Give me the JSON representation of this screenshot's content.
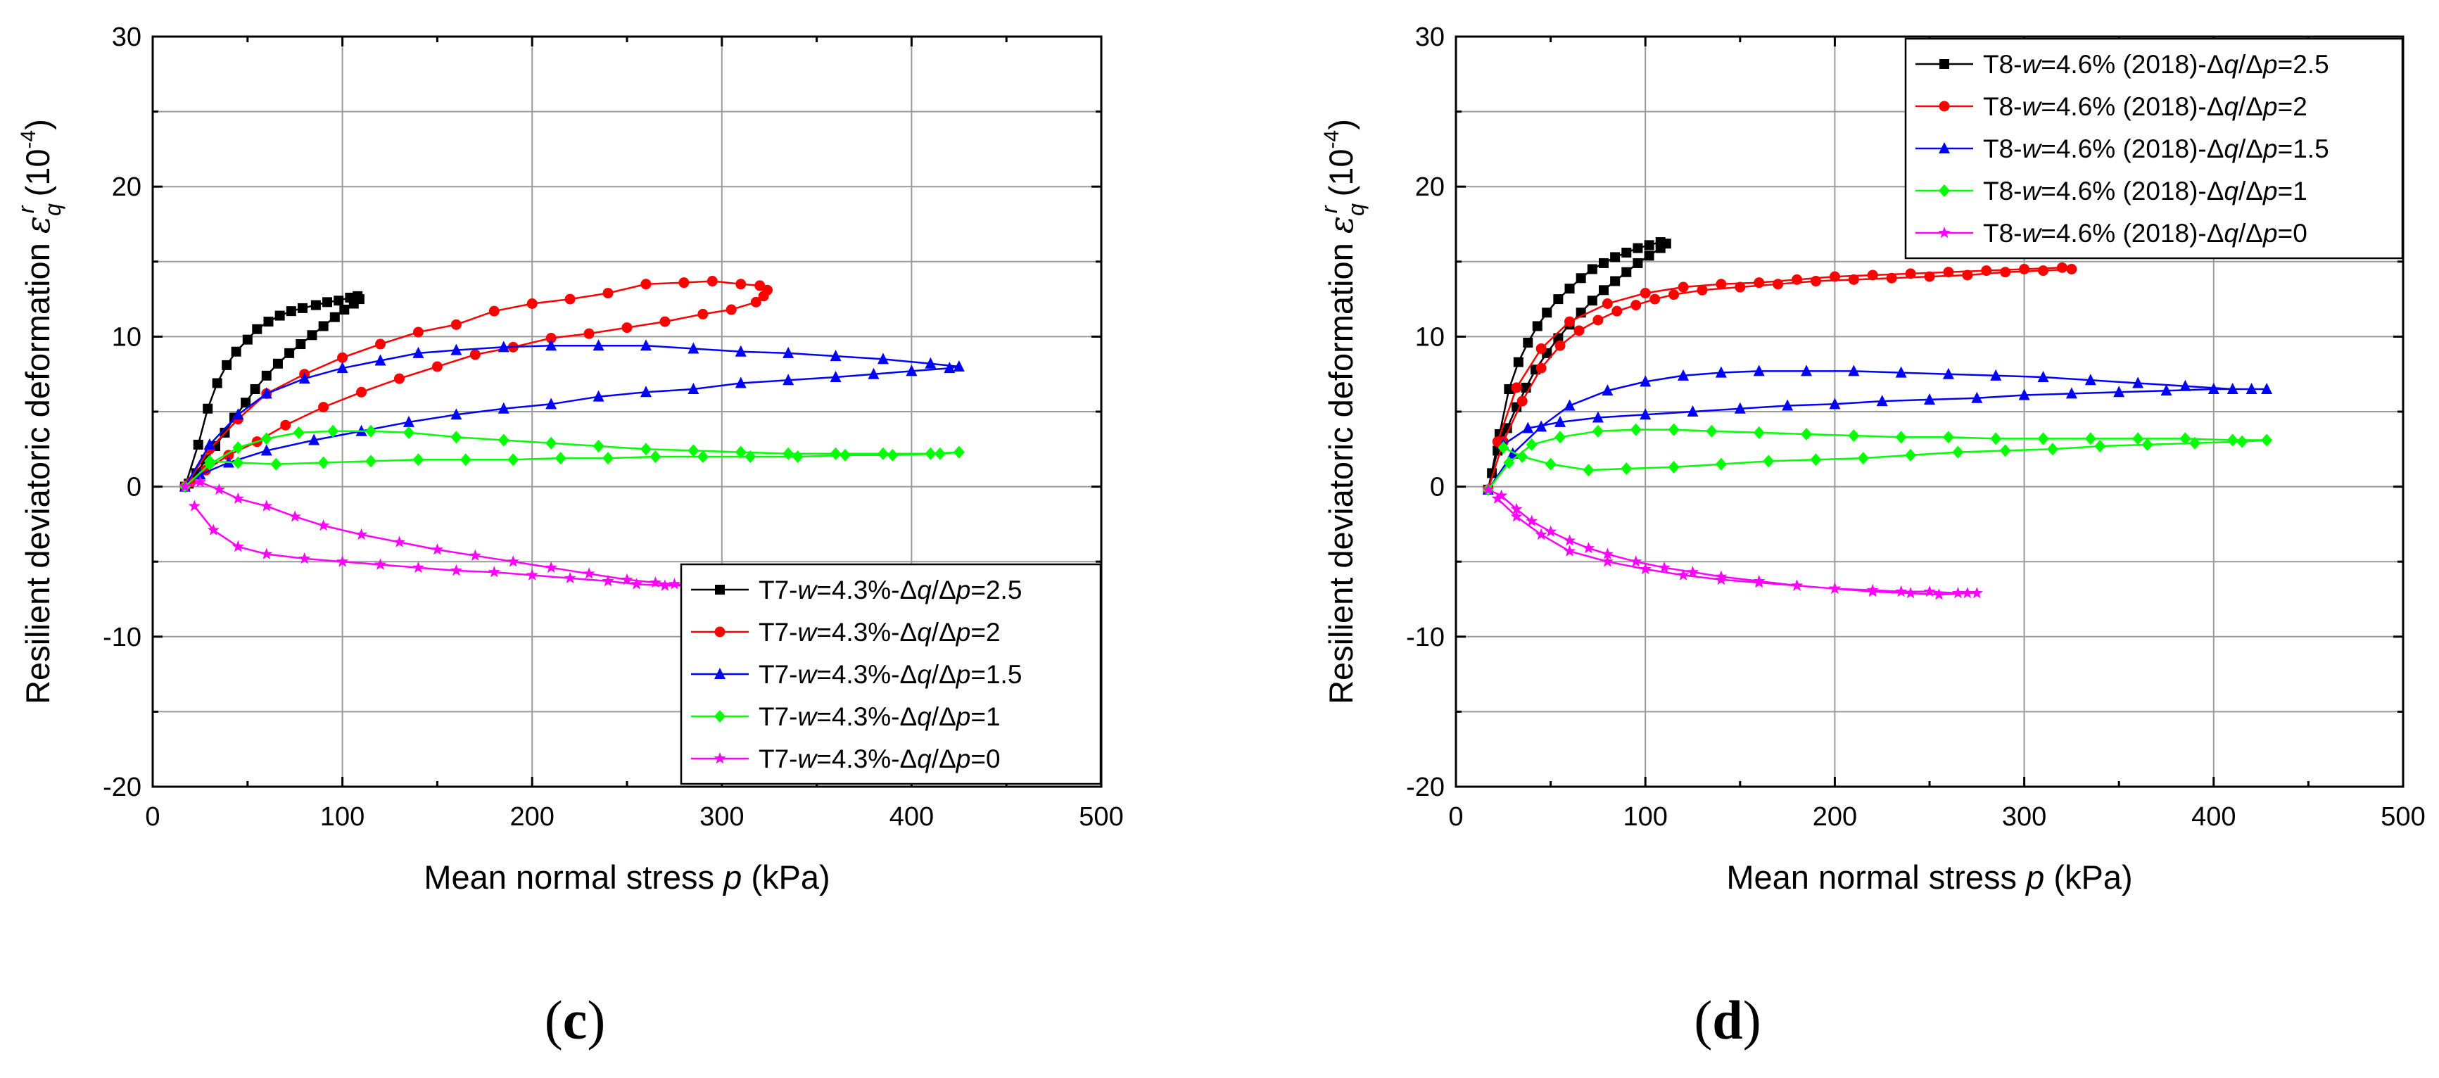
{
  "chart_data": [
    {
      "type": "line",
      "panel_label": "c",
      "xlabel": "Mean normal stress p (kPa)",
      "ylabel": "Resilient deviatoric deformation εqr (10-4)",
      "xlim": [
        0,
        500
      ],
      "ylim": [
        -20,
        30
      ],
      "xticks": [
        0,
        100,
        200,
        300,
        400,
        500
      ],
      "yticks": [
        -20,
        -10,
        0,
        10,
        20,
        30
      ],
      "grid": true,
      "legend_position": "bottom-right",
      "series": [
        {
          "name": "T7-w=4.3%-Δq/Δp=2.5",
          "legend": {
            "pre": "T7-",
            "w": "w",
            "mid": "=4.3%-Δ",
            "q": "q",
            "slash": "/Δ",
            "p": "p",
            "post": "=2.5"
          },
          "color": "#000000",
          "marker": "square",
          "x": [
            17,
            24,
            29,
            34,
            39,
            44,
            50,
            55,
            61,
            67,
            73,
            79,
            86,
            92,
            98,
            104,
            108,
            109,
            106,
            101,
            96,
            90,
            84,
            78,
            72,
            66,
            60,
            54,
            49,
            43,
            38,
            33,
            28,
            23,
            19
          ],
          "y": [
            0,
            2.8,
            5.2,
            6.9,
            8.1,
            9.0,
            9.8,
            10.5,
            11.0,
            11.4,
            11.7,
            11.9,
            12.1,
            12.3,
            12.4,
            12.6,
            12.7,
            12.5,
            12.2,
            11.8,
            11.3,
            10.7,
            10.1,
            9.5,
            8.9,
            8.2,
            7.4,
            6.5,
            5.6,
            4.6,
            3.6,
            2.7,
            1.8,
            0.9,
            0.2
          ]
        },
        {
          "name": "T7-w=4.3%-Δq/Δp=2",
          "legend": {
            "pre": "T7-",
            "w": "w",
            "mid": "=4.3%-Δ",
            "q": "q",
            "slash": "/Δ",
            "p": "p",
            "post": "=2"
          },
          "color": "#ff0000",
          "marker": "circle",
          "x": [
            17,
            30,
            45,
            60,
            80,
            100,
            120,
            140,
            160,
            180,
            200,
            220,
            240,
            260,
            280,
            295,
            310,
            320,
            324,
            322,
            318,
            305,
            290,
            270,
            250,
            230,
            210,
            190,
            170,
            150,
            130,
            110,
            90,
            70,
            55,
            40,
            28,
            20
          ],
          "y": [
            0,
            2.5,
            4.5,
            6.2,
            7.5,
            8.6,
            9.5,
            10.3,
            10.8,
            11.7,
            12.2,
            12.5,
            12.9,
            13.5,
            13.6,
            13.7,
            13.5,
            13.4,
            13.1,
            12.7,
            12.3,
            11.8,
            11.5,
            11.0,
            10.6,
            10.2,
            9.9,
            9.3,
            8.8,
            8.0,
            7.2,
            6.3,
            5.3,
            4.1,
            3.0,
            2.1,
            1.1,
            0.3
          ]
        },
        {
          "name": "T7-w=4.3%-Δq/Δp=1.5",
          "legend": {
            "pre": "T7-",
            "w": "w",
            "mid": "=4.3%-Δ",
            "q": "q",
            "slash": "/Δ",
            "p": "p",
            "post": "=1.5"
          },
          "color": "#0000ff",
          "marker": "triangle",
          "x": [
            17,
            30,
            45,
            60,
            80,
            100,
            120,
            140,
            160,
            185,
            210,
            235,
            260,
            285,
            310,
            335,
            360,
            385,
            410,
            425,
            420,
            400,
            380,
            360,
            335,
            310,
            285,
            260,
            235,
            210,
            185,
            160,
            135,
            110,
            85,
            60,
            40,
            25
          ],
          "y": [
            0,
            2.8,
            4.8,
            6.2,
            7.2,
            7.9,
            8.4,
            8.9,
            9.1,
            9.3,
            9.4,
            9.4,
            9.4,
            9.2,
            9.0,
            8.9,
            8.7,
            8.5,
            8.2,
            8.0,
            7.9,
            7.7,
            7.5,
            7.3,
            7.1,
            6.9,
            6.5,
            6.3,
            6.0,
            5.5,
            5.2,
            4.8,
            4.3,
            3.7,
            3.1,
            2.4,
            1.6,
            0.8
          ]
        },
        {
          "name": "T7-w=4.3%-Δq/Δp=1",
          "legend": {
            "pre": "T7-",
            "w": "w",
            "mid": "=4.3%-Δ",
            "q": "q",
            "slash": "/Δ",
            "p": "p",
            "post": "=1"
          },
          "color": "#00ff00",
          "marker": "diamond",
          "x": [
            17,
            30,
            45,
            60,
            77,
            95,
            115,
            135,
            160,
            185,
            210,
            235,
            260,
            285,
            310,
            335,
            360,
            385,
            410,
            425,
            415,
            390,
            365,
            340,
            315,
            290,
            265,
            240,
            215,
            190,
            165,
            140,
            115,
            90,
            65,
            45,
            30
          ],
          "y": [
            0,
            1.5,
            2.6,
            3.2,
            3.6,
            3.7,
            3.7,
            3.6,
            3.3,
            3.1,
            2.9,
            2.7,
            2.5,
            2.4,
            2.3,
            2.2,
            2.2,
            2.2,
            2.2,
            2.3,
            2.2,
            2.1,
            2.1,
            2.0,
            2.0,
            2.0,
            2.0,
            1.9,
            1.9,
            1.8,
            1.8,
            1.8,
            1.7,
            1.6,
            1.5,
            1.6,
            1.7
          ]
        },
        {
          "name": "T7-w=4.3%-Δq/Δp=0",
          "legend": {
            "pre": "T7-",
            "w": "w",
            "mid": "=4.3%-Δ",
            "q": "q",
            "slash": "/Δ",
            "p": "p",
            "post": "=0"
          },
          "color": "#ff00ff",
          "marker": "star",
          "x": [
            17,
            25,
            35,
            45,
            60,
            75,
            90,
            110,
            130,
            150,
            170,
            190,
            210,
            230,
            250,
            265,
            275,
            280,
            270,
            255,
            240,
            220,
            200,
            180,
            160,
            140,
            120,
            100,
            80,
            60,
            45,
            32,
            22
          ],
          "y": [
            0,
            0.3,
            -0.2,
            -0.8,
            -1.3,
            -2.0,
            -2.6,
            -3.2,
            -3.7,
            -4.2,
            -4.6,
            -5.0,
            -5.4,
            -5.8,
            -6.2,
            -6.4,
            -6.5,
            -6.6,
            -6.6,
            -6.5,
            -6.3,
            -6.1,
            -5.9,
            -5.7,
            -5.6,
            -5.4,
            -5.2,
            -5.0,
            -4.8,
            -4.5,
            -4.0,
            -2.9,
            -1.3
          ]
        }
      ]
    },
    {
      "type": "line",
      "panel_label": "d",
      "xlabel": "Mean normal stress p (kPa)",
      "ylabel": "Resilient deviatoric deformation εqr (10-4)",
      "xlim": [
        0,
        500
      ],
      "ylim": [
        -20,
        30
      ],
      "xticks": [
        0,
        100,
        200,
        300,
        400,
        500
      ],
      "yticks": [
        -20,
        -10,
        0,
        10,
        20,
        30
      ],
      "grid": true,
      "legend_position": "top-right",
      "series": [
        {
          "name": "T8-w=4.6% (2018)-Δq/Δp=2.5",
          "legend": {
            "pre": "T8-",
            "w": "w",
            "mid": "=4.6% (2018)-Δ",
            "q": "q",
            "slash": "/Δ",
            "p": "p",
            "post": "=2.5"
          },
          "color": "#000000",
          "marker": "square",
          "x": [
            17,
            23,
            28,
            33,
            38,
            43,
            48,
            54,
            60,
            66,
            72,
            78,
            84,
            90,
            96,
            102,
            108,
            111,
            108,
            102,
            96,
            90,
            84,
            78,
            72,
            66,
            60,
            54,
            48,
            42,
            37,
            32,
            27,
            22,
            19
          ],
          "y": [
            -0.2,
            3.5,
            6.5,
            8.3,
            9.6,
            10.7,
            11.6,
            12.5,
            13.2,
            13.9,
            14.5,
            14.9,
            15.3,
            15.6,
            15.9,
            16.1,
            16.3,
            16.2,
            15.9,
            15.4,
            14.9,
            14.3,
            13.7,
            13.1,
            12.4,
            11.6,
            10.8,
            9.9,
            8.9,
            7.8,
            6.6,
            5.3,
            3.9,
            2.4,
            0.9
          ]
        },
        {
          "name": "T8-w=4.6% (2018)-Δq/Δp=2",
          "legend": {
            "pre": "T8-",
            "w": "w",
            "mid": "=4.6% (2018)-Δ",
            "q": "q",
            "slash": "/Δ",
            "p": "p",
            "post": "=2"
          },
          "color": "#ff0000",
          "marker": "circle",
          "x": [
            17,
            25,
            35,
            45,
            55,
            65,
            75,
            85,
            95,
            105,
            115,
            130,
            150,
            170,
            190,
            210,
            230,
            250,
            270,
            290,
            310,
            325,
            320,
            300,
            280,
            260,
            240,
            220,
            200,
            180,
            160,
            140,
            120,
            100,
            80,
            60,
            45,
            32,
            22
          ],
          "y": [
            -0.2,
            3.0,
            5.7,
            7.9,
            9.4,
            10.4,
            11.1,
            11.7,
            12.1,
            12.5,
            12.8,
            13.1,
            13.3,
            13.5,
            13.7,
            13.8,
            13.9,
            14.0,
            14.1,
            14.3,
            14.4,
            14.5,
            14.6,
            14.5,
            14.4,
            14.3,
            14.2,
            14.1,
            14.0,
            13.8,
            13.6,
            13.5,
            13.3,
            12.9,
            12.2,
            11.0,
            9.2,
            6.6,
            3.0
          ]
        },
        {
          "name": "T8-w=4.6% (2018)-Δq/Δp=1.5",
          "legend": {
            "pre": "T8-",
            "w": "w",
            "mid": "=4.6% (2018)-Δ",
            "q": "q",
            "slash": "/Δ",
            "p": "p",
            "post": "=1.5"
          },
          "color": "#0000ff",
          "marker": "triangle",
          "x": [
            17,
            30,
            45,
            60,
            80,
            100,
            120,
            140,
            160,
            185,
            210,
            235,
            260,
            285,
            310,
            335,
            360,
            385,
            410,
            428,
            420,
            400,
            375,
            350,
            325,
            300,
            275,
            250,
            225,
            200,
            175,
            150,
            125,
            100,
            75,
            55,
            38,
            25
          ],
          "y": [
            -0.2,
            2.2,
            4.0,
            5.4,
            6.4,
            7.0,
            7.4,
            7.6,
            7.7,
            7.7,
            7.7,
            7.6,
            7.5,
            7.4,
            7.3,
            7.1,
            6.9,
            6.7,
            6.5,
            6.5,
            6.5,
            6.5,
            6.4,
            6.3,
            6.2,
            6.1,
            5.9,
            5.8,
            5.7,
            5.5,
            5.4,
            5.2,
            5.0,
            4.8,
            4.6,
            4.3,
            3.9,
            2.8
          ]
        },
        {
          "name": "T8-w=4.6% (2018)-Δq/Δp=1",
          "legend": {
            "pre": "T8-",
            "w": "w",
            "mid": "=4.6% (2018)-Δ",
            "q": "q",
            "slash": "/Δ",
            "p": "p",
            "post": "=1"
          },
          "color": "#00ff00",
          "marker": "diamond",
          "x": [
            17,
            28,
            40,
            55,
            75,
            95,
            115,
            135,
            160,
            185,
            210,
            235,
            260,
            285,
            310,
            335,
            360,
            385,
            410,
            428,
            415,
            390,
            365,
            340,
            315,
            290,
            265,
            240,
            215,
            190,
            165,
            140,
            115,
            90,
            70,
            50,
            35,
            25
          ],
          "y": [
            -0.2,
            1.6,
            2.8,
            3.3,
            3.7,
            3.8,
            3.8,
            3.7,
            3.6,
            3.5,
            3.4,
            3.3,
            3.3,
            3.2,
            3.2,
            3.2,
            3.2,
            3.2,
            3.1,
            3.1,
            3.0,
            2.9,
            2.8,
            2.7,
            2.5,
            2.4,
            2.3,
            2.1,
            1.9,
            1.8,
            1.7,
            1.5,
            1.3,
            1.2,
            1.1,
            1.5,
            2.0,
            2.6
          ]
        },
        {
          "name": "T8-w=4.6% (2018)-Δq/Δp=0",
          "legend": {
            "pre": "T8-",
            "w": "w",
            "mid": "=4.6% (2018)-Δ",
            "q": "q",
            "slash": "/Δ",
            "p": "p",
            "post": "=0"
          },
          "color": "#ff00ff",
          "marker": "star",
          "x": [
            17,
            24,
            32,
            40,
            50,
            60,
            70,
            80,
            95,
            110,
            125,
            140,
            160,
            180,
            200,
            220,
            240,
            255,
            270,
            275,
            265,
            250,
            235,
            220,
            200,
            180,
            160,
            140,
            120,
            100,
            80,
            60,
            45,
            32,
            22
          ],
          "y": [
            -0.2,
            -0.6,
            -1.5,
            -2.3,
            -3.0,
            -3.6,
            -4.1,
            -4.5,
            -5.0,
            -5.4,
            -5.7,
            -6.0,
            -6.3,
            -6.6,
            -6.8,
            -7.0,
            -7.1,
            -7.2,
            -7.1,
            -7.1,
            -7.1,
            -7.0,
            -7.0,
            -6.9,
            -6.8,
            -6.6,
            -6.4,
            -6.2,
            -5.9,
            -5.5,
            -5.0,
            -4.3,
            -3.2,
            -2.0,
            -0.8
          ]
        }
      ]
    }
  ]
}
